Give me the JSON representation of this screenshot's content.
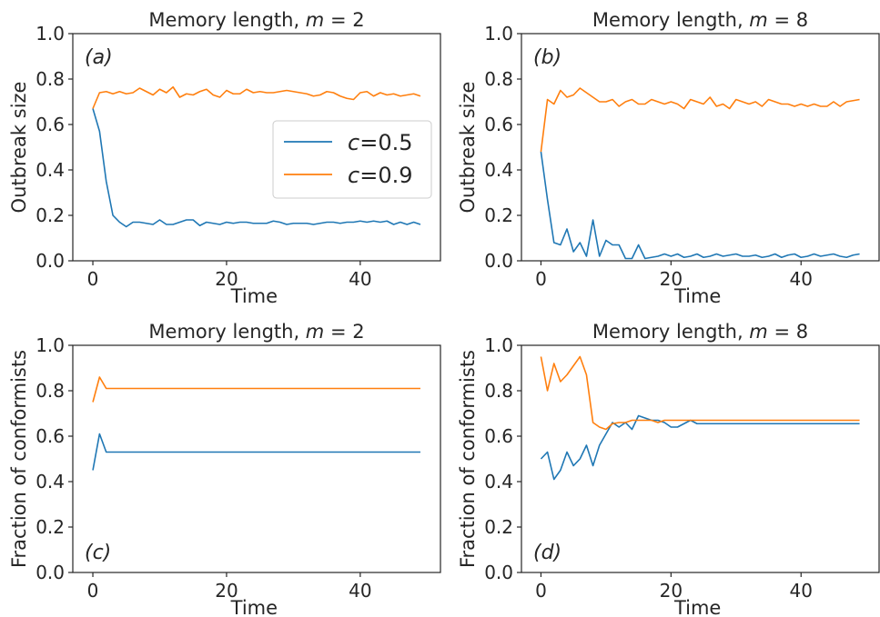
{
  "chart_data": [
    {
      "type": "line",
      "panel_label": "(a)",
      "title": "Memory length, m = 2",
      "xlabel": "Time",
      "ylabel": "Outbreak size",
      "xlim": [
        -3,
        52
      ],
      "ylim": [
        0,
        1
      ],
      "xticks": [
        0,
        20,
        40
      ],
      "yticks": [
        0.0,
        0.2,
        0.4,
        0.6,
        0.8,
        1.0
      ],
      "grid": false,
      "legend": "center-right",
      "x": [
        0,
        1,
        2,
        3,
        4,
        5,
        6,
        7,
        8,
        9,
        10,
        11,
        12,
        13,
        14,
        15,
        16,
        17,
        18,
        19,
        20,
        21,
        22,
        23,
        24,
        25,
        26,
        27,
        28,
        29,
        30,
        31,
        32,
        33,
        34,
        35,
        36,
        37,
        38,
        39,
        40,
        41,
        42,
        43,
        44,
        45,
        46,
        47,
        48,
        49
      ],
      "series": [
        {
          "name": "c=0.5",
          "color": "#1f77b4",
          "values": [
            0.67,
            0.57,
            0.35,
            0.2,
            0.17,
            0.15,
            0.17,
            0.17,
            0.165,
            0.16,
            0.18,
            0.16,
            0.16,
            0.17,
            0.18,
            0.18,
            0.155,
            0.17,
            0.165,
            0.16,
            0.17,
            0.165,
            0.17,
            0.17,
            0.165,
            0.165,
            0.165,
            0.175,
            0.17,
            0.16,
            0.165,
            0.165,
            0.165,
            0.16,
            0.165,
            0.17,
            0.17,
            0.165,
            0.17,
            0.17,
            0.175,
            0.17,
            0.175,
            0.17,
            0.175,
            0.16,
            0.17,
            0.16,
            0.17,
            0.16
          ]
        },
        {
          "name": "c=0.9",
          "color": "#ff7f0e",
          "values": [
            0.67,
            0.74,
            0.745,
            0.735,
            0.745,
            0.735,
            0.74,
            0.76,
            0.745,
            0.73,
            0.755,
            0.74,
            0.765,
            0.72,
            0.735,
            0.73,
            0.745,
            0.755,
            0.73,
            0.72,
            0.75,
            0.735,
            0.735,
            0.755,
            0.74,
            0.745,
            0.74,
            0.74,
            0.745,
            0.75,
            0.745,
            0.74,
            0.735,
            0.725,
            0.73,
            0.745,
            0.74,
            0.725,
            0.715,
            0.71,
            0.74,
            0.745,
            0.725,
            0.74,
            0.73,
            0.735,
            0.725,
            0.73,
            0.735,
            0.725
          ]
        }
      ]
    },
    {
      "type": "line",
      "panel_label": "(b)",
      "title": "Memory length, m = 8",
      "xlabel": "Time",
      "ylabel": "Outbreak size",
      "xlim": [
        -3,
        52
      ],
      "ylim": [
        0,
        1
      ],
      "xticks": [
        0,
        20,
        40
      ],
      "yticks": [
        0.0,
        0.2,
        0.4,
        0.6,
        0.8,
        1.0
      ],
      "grid": false,
      "x": [
        0,
        1,
        2,
        3,
        4,
        5,
        6,
        7,
        8,
        9,
        10,
        11,
        12,
        13,
        14,
        15,
        16,
        17,
        18,
        19,
        20,
        21,
        22,
        23,
        24,
        25,
        26,
        27,
        28,
        29,
        30,
        31,
        32,
        33,
        34,
        35,
        36,
        37,
        38,
        39,
        40,
        41,
        42,
        43,
        44,
        45,
        46,
        47,
        48,
        49
      ],
      "series": [
        {
          "name": "c=0.5",
          "color": "#1f77b4",
          "values": [
            0.48,
            0.27,
            0.08,
            0.07,
            0.14,
            0.04,
            0.08,
            0.02,
            0.18,
            0.02,
            0.09,
            0.07,
            0.07,
            0.01,
            0.01,
            0.07,
            0.01,
            0.015,
            0.02,
            0.03,
            0.02,
            0.03,
            0.015,
            0.02,
            0.03,
            0.015,
            0.02,
            0.03,
            0.02,
            0.025,
            0.03,
            0.02,
            0.02,
            0.025,
            0.015,
            0.02,
            0.03,
            0.015,
            0.025,
            0.03,
            0.015,
            0.02,
            0.03,
            0.02,
            0.025,
            0.03,
            0.02,
            0.015,
            0.025,
            0.03
          ]
        },
        {
          "name": "c=0.9",
          "color": "#ff7f0e",
          "values": [
            0.48,
            0.71,
            0.69,
            0.75,
            0.72,
            0.73,
            0.76,
            0.74,
            0.72,
            0.7,
            0.7,
            0.71,
            0.68,
            0.7,
            0.71,
            0.69,
            0.69,
            0.71,
            0.7,
            0.69,
            0.7,
            0.69,
            0.67,
            0.71,
            0.7,
            0.69,
            0.72,
            0.68,
            0.69,
            0.67,
            0.71,
            0.7,
            0.69,
            0.7,
            0.68,
            0.71,
            0.7,
            0.69,
            0.69,
            0.68,
            0.69,
            0.68,
            0.69,
            0.68,
            0.68,
            0.7,
            0.68,
            0.7,
            0.705,
            0.71
          ]
        }
      ]
    },
    {
      "type": "line",
      "panel_label": "(c)",
      "title": "Memory length, m = 2",
      "xlabel": "Time",
      "ylabel": "Fraction of conformists",
      "xlim": [
        -3,
        52
      ],
      "ylim": [
        0,
        1
      ],
      "xticks": [
        0,
        20,
        40
      ],
      "yticks": [
        0.0,
        0.2,
        0.4,
        0.6,
        0.8,
        1.0
      ],
      "grid": false,
      "x": [
        0,
        1,
        2,
        3,
        4,
        5,
        6,
        7,
        8,
        9,
        10,
        11,
        12,
        13,
        14,
        15,
        16,
        17,
        18,
        19,
        20,
        21,
        22,
        23,
        24,
        25,
        26,
        27,
        28,
        29,
        30,
        31,
        32,
        33,
        34,
        35,
        36,
        37,
        38,
        39,
        40,
        41,
        42,
        43,
        44,
        45,
        46,
        47,
        48,
        49
      ],
      "series": [
        {
          "name": "c=0.5",
          "color": "#1f77b4",
          "values": [
            0.45,
            0.61,
            0.53,
            0.53,
            0.53,
            0.53,
            0.53,
            0.53,
            0.53,
            0.53,
            0.53,
            0.53,
            0.53,
            0.53,
            0.53,
            0.53,
            0.53,
            0.53,
            0.53,
            0.53,
            0.53,
            0.53,
            0.53,
            0.53,
            0.53,
            0.53,
            0.53,
            0.53,
            0.53,
            0.53,
            0.53,
            0.53,
            0.53,
            0.53,
            0.53,
            0.53,
            0.53,
            0.53,
            0.53,
            0.53,
            0.53,
            0.53,
            0.53,
            0.53,
            0.53,
            0.53,
            0.53,
            0.53,
            0.53,
            0.53
          ]
        },
        {
          "name": "c=0.9",
          "color": "#ff7f0e",
          "values": [
            0.75,
            0.86,
            0.81,
            0.81,
            0.81,
            0.81,
            0.81,
            0.81,
            0.81,
            0.81,
            0.81,
            0.81,
            0.81,
            0.81,
            0.81,
            0.81,
            0.81,
            0.81,
            0.81,
            0.81,
            0.81,
            0.81,
            0.81,
            0.81,
            0.81,
            0.81,
            0.81,
            0.81,
            0.81,
            0.81,
            0.81,
            0.81,
            0.81,
            0.81,
            0.81,
            0.81,
            0.81,
            0.81,
            0.81,
            0.81,
            0.81,
            0.81,
            0.81,
            0.81,
            0.81,
            0.81,
            0.81,
            0.81,
            0.81,
            0.81
          ]
        }
      ]
    },
    {
      "type": "line",
      "panel_label": "(d)",
      "title": "Memory length, m = 8",
      "xlabel": "Time",
      "ylabel": "Fraction of conformists",
      "xlim": [
        -3,
        52
      ],
      "ylim": [
        0,
        1
      ],
      "xticks": [
        0,
        20,
        40
      ],
      "yticks": [
        0.0,
        0.2,
        0.4,
        0.6,
        0.8,
        1.0
      ],
      "grid": false,
      "x": [
        0,
        1,
        2,
        3,
        4,
        5,
        6,
        7,
        8,
        9,
        10,
        11,
        12,
        13,
        14,
        15,
        16,
        17,
        18,
        19,
        20,
        21,
        22,
        23,
        24,
        25,
        26,
        27,
        28,
        29,
        30,
        31,
        32,
        33,
        34,
        35,
        36,
        37,
        38,
        39,
        40,
        41,
        42,
        43,
        44,
        45,
        46,
        47,
        48,
        49
      ],
      "series": [
        {
          "name": "c=0.5",
          "color": "#1f77b4",
          "values": [
            0.5,
            0.53,
            0.41,
            0.45,
            0.53,
            0.47,
            0.5,
            0.56,
            0.47,
            0.56,
            0.61,
            0.66,
            0.64,
            0.66,
            0.63,
            0.69,
            0.68,
            0.67,
            0.67,
            0.66,
            0.64,
            0.64,
            0.655,
            0.67,
            0.655,
            0.655,
            0.655,
            0.655,
            0.655,
            0.655,
            0.655,
            0.655,
            0.655,
            0.655,
            0.655,
            0.655,
            0.655,
            0.655,
            0.655,
            0.655,
            0.655,
            0.655,
            0.655,
            0.655,
            0.655,
            0.655,
            0.655,
            0.655,
            0.655,
            0.655
          ]
        },
        {
          "name": "c=0.9",
          "color": "#ff7f0e",
          "values": [
            0.95,
            0.8,
            0.92,
            0.84,
            0.87,
            0.91,
            0.95,
            0.87,
            0.66,
            0.64,
            0.63,
            0.655,
            0.66,
            0.66,
            0.67,
            0.67,
            0.67,
            0.67,
            0.66,
            0.67,
            0.67,
            0.67,
            0.67,
            0.67,
            0.67,
            0.67,
            0.67,
            0.67,
            0.67,
            0.67,
            0.67,
            0.67,
            0.67,
            0.67,
            0.67,
            0.67,
            0.67,
            0.67,
            0.67,
            0.67,
            0.67,
            0.67,
            0.67,
            0.67,
            0.67,
            0.67,
            0.67,
            0.67,
            0.67,
            0.67
          ]
        }
      ]
    }
  ]
}
